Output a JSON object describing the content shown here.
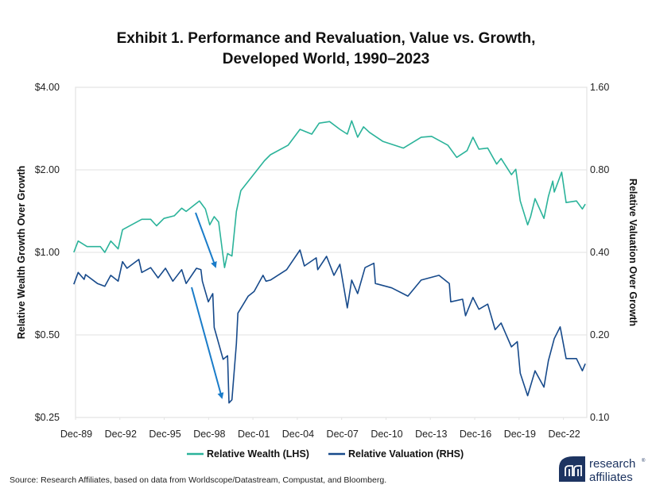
{
  "chart_data": {
    "type": "line",
    "title": "Exhibit 1. Performance and Revaluation, Value vs. Growth,",
    "title_line2": "Developed World, 1990–2023",
    "ylabel": "Relative Wealth Growth Over Growth",
    "y2label": "Relative Valuation Over Growth",
    "y_scale": "log",
    "ylim": [
      0.25,
      4.0
    ],
    "y_ticks": [
      "$4.00",
      "$2.00",
      "$1.00",
      "$0.50",
      "$0.25"
    ],
    "y_tick_values": [
      4.0,
      2.0,
      1.0,
      0.5,
      0.25
    ],
    "y2_scale": "log",
    "y2lim": [
      0.1,
      1.6
    ],
    "y2_ticks": [
      "1.60",
      "0.80",
      "0.40",
      "0.20",
      "0.10"
    ],
    "x_ticks": [
      "Dec-89",
      "Dec-92",
      "Dec-95",
      "Dec-98",
      "Dec-01",
      "Dec-04",
      "Dec-07",
      "Dec-10",
      "Dec-13",
      "Dec-16",
      "Dec-19",
      "Dec-22"
    ],
    "x_tick_values": [
      1989.92,
      1992.92,
      1995.92,
      1998.92,
      2001.92,
      2004.92,
      2007.92,
      2010.92,
      2013.92,
      2016.92,
      2019.92,
      2022.92
    ],
    "xlim": [
      1989.92,
      2024.5
    ],
    "grid": "horizontal",
    "legend_position": "bottom",
    "series": [
      {
        "name": "Relative Wealth (LHS)",
        "axis": "left",
        "color": "#2bb39a",
        "x": [
          1989.8,
          1990.1,
          1990.7,
          1991.6,
          1991.9,
          1992.3,
          1992.8,
          1993.1,
          1994.4,
          1995.0,
          1995.4,
          1995.9,
          1996.6,
          1997.1,
          1997.4,
          1998.3,
          1998.7,
          1999.0,
          1999.3,
          1999.6,
          2000.0,
          2000.2,
          2000.5,
          2000.8,
          2001.1,
          2002.7,
          2003.1,
          2004.3,
          2005.1,
          2005.9,
          2006.4,
          2007.1,
          2007.8,
          2008.3,
          2008.6,
          2009.0,
          2009.4,
          2009.8,
          2010.7,
          2012.1,
          2013.3,
          2014.0,
          2015.1,
          2015.7,
          2016.4,
          2016.8,
          2017.2,
          2017.8,
          2018.4,
          2018.7,
          2019.4,
          2019.7,
          2020.0,
          2020.5,
          2020.7,
          2021.0,
          2021.6,
          2021.9,
          2022.2,
          2022.3,
          2022.8,
          2023.1,
          2023.8,
          2024.2,
          2024.4
        ],
        "values": [
          1.0,
          1.1,
          1.05,
          1.05,
          1.0,
          1.1,
          1.03,
          1.21,
          1.32,
          1.32,
          1.25,
          1.33,
          1.36,
          1.45,
          1.41,
          1.54,
          1.44,
          1.26,
          1.35,
          1.29,
          0.88,
          0.99,
          0.97,
          1.41,
          1.68,
          2.16,
          2.27,
          2.46,
          2.81,
          2.7,
          2.96,
          3.0,
          2.81,
          2.7,
          3.02,
          2.63,
          2.87,
          2.74,
          2.54,
          2.4,
          2.63,
          2.65,
          2.46,
          2.22,
          2.35,
          2.63,
          2.38,
          2.4,
          2.1,
          2.2,
          1.92,
          2.01,
          1.54,
          1.26,
          1.35,
          1.57,
          1.33,
          1.6,
          1.82,
          1.66,
          1.96,
          1.52,
          1.54,
          1.44,
          1.5
        ]
      },
      {
        "name": "Relative Valuation (RHS)",
        "axis": "right",
        "color": "#174a8b",
        "x": [
          1989.8,
          1990.1,
          1990.5,
          1990.6,
          1991.4,
          1991.9,
          1992.3,
          1992.8,
          1993.1,
          1993.4,
          1994.2,
          1994.4,
          1995.0,
          1995.5,
          1996.0,
          1996.5,
          1997.1,
          1997.4,
          1998.1,
          1998.4,
          1998.5,
          1998.9,
          1999.2,
          1999.3,
          1999.9,
          2000.2,
          2000.3,
          2000.5,
          2000.8,
          2000.9,
          2001.6,
          2002.0,
          2002.6,
          2002.8,
          2003.1,
          2004.2,
          2005.1,
          2005.4,
          2006.2,
          2006.3,
          2006.9,
          2007.4,
          2007.8,
          2008.3,
          2008.6,
          2009.0,
          2009.5,
          2010.1,
          2010.2,
          2011.3,
          2012.4,
          2013.3,
          2014.5,
          2015.2,
          2015.3,
          2016.1,
          2016.3,
          2016.8,
          2017.2,
          2017.8,
          2018.3,
          2018.7,
          2019.4,
          2019.8,
          2020.0,
          2020.5,
          2021.0,
          2021.6,
          2021.9,
          2022.3,
          2022.7,
          2023.1,
          2023.8,
          2024.2,
          2024.4
        ],
        "values": [
          0.306,
          0.338,
          0.319,
          0.332,
          0.308,
          0.301,
          0.33,
          0.314,
          0.37,
          0.35,
          0.377,
          0.338,
          0.352,
          0.323,
          0.35,
          0.314,
          0.346,
          0.308,
          0.35,
          0.346,
          0.314,
          0.264,
          0.283,
          0.213,
          0.163,
          0.168,
          0.113,
          0.116,
          0.186,
          0.24,
          0.277,
          0.288,
          0.33,
          0.314,
          0.317,
          0.346,
          0.408,
          0.357,
          0.382,
          0.346,
          0.387,
          0.33,
          0.362,
          0.251,
          0.317,
          0.283,
          0.352,
          0.365,
          0.308,
          0.297,
          0.277,
          0.317,
          0.33,
          0.308,
          0.264,
          0.27,
          0.235,
          0.274,
          0.248,
          0.259,
          0.209,
          0.221,
          0.181,
          0.189,
          0.145,
          0.12,
          0.148,
          0.129,
          0.161,
          0.194,
          0.214,
          0.164,
          0.164,
          0.148,
          0.157
        ]
      }
    ],
    "annotation_color": "#1a7cc9"
  },
  "source": "Source: Research Affiliates, based on data from Worldscope/Datastream, Compustat, and Bloomberg.",
  "logo": {
    "line1": "research",
    "line2": "affiliates",
    "brand_color": "#1d3461"
  }
}
